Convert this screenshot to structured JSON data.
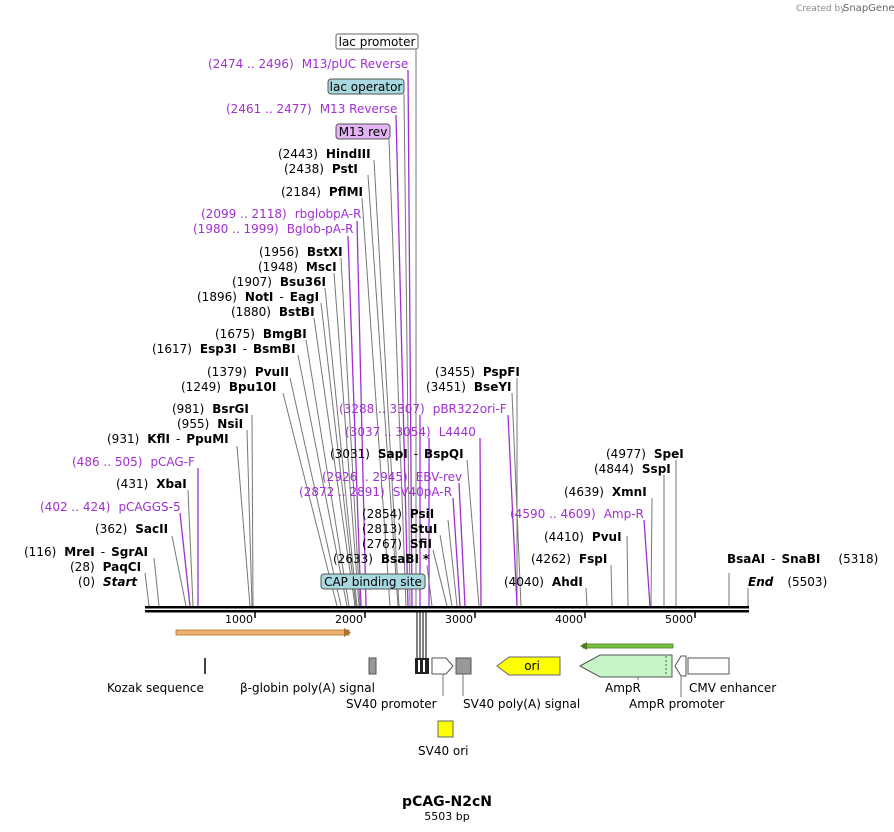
{
  "brand": {
    "created_by": "Created by",
    "name": "SnapGene"
  },
  "plasmid": {
    "name": "pCAG-N2cN",
    "length": "5503 bp"
  },
  "axis": {
    "ticks": [
      "1000",
      "2000",
      "3000",
      "4000",
      "5000"
    ]
  },
  "boxed_features": {
    "lac_promoter": "lac promoter",
    "lac_operator": "lac operator",
    "m13_rev": "M13 rev",
    "cap_binding_site": "CAP binding site"
  },
  "primers": [
    {
      "range": "(2474 .. 2496)",
      "name": "M13/pUC Reverse"
    },
    {
      "range": "(2461 .. 2477)",
      "name": "M13 Reverse"
    },
    {
      "range": "(2099 .. 2118)",
      "name": "rbglobpA-R"
    },
    {
      "range": "(1980 .. 1999)",
      "name": "Bglob-pA-R"
    },
    {
      "range": "(3288 .. 3307)",
      "name": "pBR322ori-F"
    },
    {
      "range": "(3037 .. 3054)",
      "name": "L4440"
    },
    {
      "range": "(2926 .. 2945)",
      "name": "EBV-rev"
    },
    {
      "range": "(2872 .. 2891)",
      "name": "SV40pA-R"
    },
    {
      "range": "(486 .. 505)",
      "name": "pCAG-F"
    },
    {
      "range": "(402 .. 424)",
      "name": "pCAGGS-5"
    },
    {
      "range": "(4590 .. 4609)",
      "name": "Amp-R"
    }
  ],
  "sites": [
    {
      "pos": "(2443)",
      "name": "HindIII"
    },
    {
      "pos": "(2438)",
      "name": "PstI"
    },
    {
      "pos": "(2184)",
      "name": "PflMI"
    },
    {
      "pos": "(1956)",
      "name": "BstXI"
    },
    {
      "pos": "(1948)",
      "name": "MscI"
    },
    {
      "pos": "(1907)",
      "name": "Bsu36I"
    },
    {
      "pos": "(1896)",
      "name": "NotI",
      "name2": "EagI"
    },
    {
      "pos": "(1880)",
      "name": "BstBI"
    },
    {
      "pos": "(1675)",
      "name": "BmgBI"
    },
    {
      "pos": "(1617)",
      "name": "Esp3I",
      "name2": "BsmBI"
    },
    {
      "pos": "(1379)",
      "name": "PvuII"
    },
    {
      "pos": "(1249)",
      "name": "Bpu10I"
    },
    {
      "pos": "(981)",
      "name": "BsrGI"
    },
    {
      "pos": "(955)",
      "name": "NsiI"
    },
    {
      "pos": "(931)",
      "name": "KflI",
      "name2": "PpuMI"
    },
    {
      "pos": "(431)",
      "name": "XbaI"
    },
    {
      "pos": "(362)",
      "name": "SacII"
    },
    {
      "pos": "(116)",
      "name": "MreI",
      "name2": "SgrAI"
    },
    {
      "pos": "(28)",
      "name": "PaqCI"
    },
    {
      "pos": "(0)",
      "name": "Start"
    },
    {
      "pos": "(3455)",
      "name": "PspFI"
    },
    {
      "pos": "(3451)",
      "name": "BseYI"
    },
    {
      "pos": "(3031)",
      "name": "SapI",
      "name2": "BspQI"
    },
    {
      "pos": "(2854)",
      "name": "PsiI"
    },
    {
      "pos": "(2813)",
      "name": "StuI"
    },
    {
      "pos": "(2767)",
      "name": "SfiI"
    },
    {
      "pos": "(2633)",
      "name": "BsaBI",
      "mark": "*"
    },
    {
      "pos": "(4977)",
      "name": "SpeI"
    },
    {
      "pos": "(4844)",
      "name": "SspI"
    },
    {
      "pos": "(4639)",
      "name": "XmnI"
    },
    {
      "pos": "(4410)",
      "name": "PvuI"
    },
    {
      "pos": "(4262)",
      "name": "FspI"
    },
    {
      "pos": "(4040)",
      "name": "AhdI"
    },
    {
      "pos": "(5318)",
      "name": "BsaAI",
      "name2": "SnaBI"
    },
    {
      "pos": "(5503)",
      "name": "End"
    }
  ],
  "features": {
    "kozak": "Kozak sequence",
    "bglobin": "β-globin poly(A) signal",
    "sv40_promoter": "SV40 promoter",
    "sv40_polya": "SV40 poly(A) signal",
    "ori": "ori",
    "ampr": "AmpR",
    "ampr_promoter": "AmpR promoter",
    "cmv": "CMV enhancer",
    "sv40_ori": "SV40 ori"
  },
  "colors": {
    "enzyme_text": "#000000",
    "primer_text": "#a12fd1",
    "box_blue": "#a8d8e0",
    "box_purple": "#e4b4f4",
    "ori_yellow": "#ffff00",
    "ampr_green": "#c8f5c8",
    "orange_arrow": "#f0b070",
    "green_arrow": "#7cc043"
  }
}
